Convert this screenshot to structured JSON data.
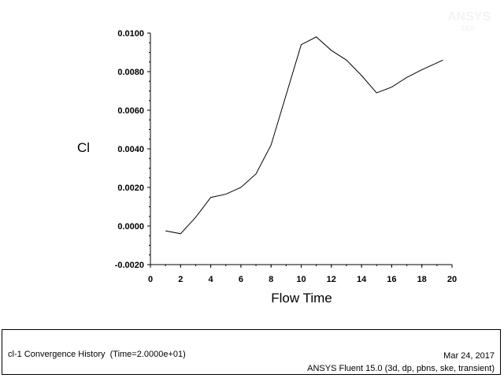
{
  "watermark": {
    "logo_text": "ANSYS",
    "version_text": "15.0"
  },
  "chart_data": {
    "type": "line",
    "title": "",
    "xlabel": "Flow Time",
    "ylabel": "Cl",
    "xlim": [
      0,
      20
    ],
    "ylim": [
      -0.002,
      0.01
    ],
    "x_ticks": [
      "0",
      "2",
      "4",
      "6",
      "8",
      "10",
      "12",
      "14",
      "16",
      "18",
      "20"
    ],
    "y_ticks": [
      "0.0100",
      "0.0080",
      "0.0060",
      "0.0040",
      "0.0020",
      "0.0000",
      "-0.0020"
    ],
    "grid": false,
    "series": [
      {
        "x": [
          1,
          2,
          3,
          4,
          5,
          6,
          7,
          8,
          9,
          10,
          11,
          12,
          13,
          14,
          15,
          16,
          17,
          18,
          19.4
        ],
        "y": [
          -0.00025,
          -0.0004,
          0.00045,
          0.00148,
          0.00165,
          0.002,
          0.0027,
          0.0042,
          0.0068,
          0.0094,
          0.0098,
          0.0091,
          0.0086,
          0.0078,
          0.0069,
          0.0072,
          0.0077,
          0.0081,
          0.0086
        ]
      }
    ]
  },
  "footer": {
    "left_text": "cl-1 Convergence History  (Time=2.0000e+01)",
    "date": "Mar 24, 2017",
    "software": "ANSYS Fluent 15.0 (3d, dp, pbns, ske, transient)"
  }
}
